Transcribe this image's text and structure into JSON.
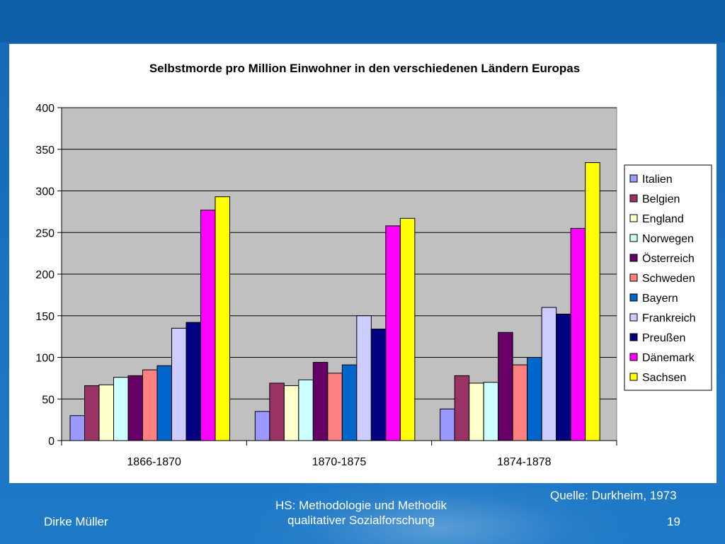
{
  "chart_data": {
    "type": "bar",
    "title": "Selbstmorde pro Million Einwohner in den verschiedenen Ländern Europas",
    "xlabel": "",
    "ylabel": "",
    "ylim": [
      0,
      400
    ],
    "yticks": [
      0,
      50,
      100,
      150,
      200,
      250,
      300,
      350,
      400
    ],
    "grid": true,
    "legend_position": "right",
    "categories": [
      "1866-1870",
      "1870-1875",
      "1874-1878"
    ],
    "series": [
      {
        "name": "Italien",
        "color": "#9999ff",
        "values": [
          30,
          35,
          38
        ]
      },
      {
        "name": "Belgien",
        "color": "#993366",
        "values": [
          66,
          69,
          78
        ]
      },
      {
        "name": "England",
        "color": "#ffffcc",
        "values": [
          67,
          66,
          69
        ]
      },
      {
        "name": "Norwegen",
        "color": "#ccffff",
        "values": [
          76,
          73,
          70
        ]
      },
      {
        "name": "Österreich",
        "color": "#660066",
        "values": [
          78,
          94,
          130
        ]
      },
      {
        "name": "Schweden",
        "color": "#ff8080",
        "values": [
          85,
          81,
          91
        ]
      },
      {
        "name": "Bayern",
        "color": "#0066cc",
        "values": [
          90,
          91,
          100
        ]
      },
      {
        "name": "Frankreich",
        "color": "#ccccff",
        "values": [
          135,
          150,
          160
        ]
      },
      {
        "name": "Preußen",
        "color": "#000080",
        "values": [
          142,
          134,
          152
        ]
      },
      {
        "name": "Dänemark",
        "color": "#ff00ff",
        "values": [
          277,
          258,
          255
        ]
      },
      {
        "name": "Sachsen",
        "color": "#ffff00",
        "values": [
          293,
          267,
          334
        ]
      }
    ]
  },
  "footer": {
    "author": "Dirke Müller",
    "course_line1": "HS: Methodologie und Methodik",
    "course_line2": "qualitativer Sozialforschung",
    "source": "Quelle: Durkheim, 1973",
    "page_number": "19"
  },
  "colors": {
    "plot_background": "#c0c0c0",
    "header_band": "#0d5fa8",
    "slide_background": "#1c74c2"
  }
}
